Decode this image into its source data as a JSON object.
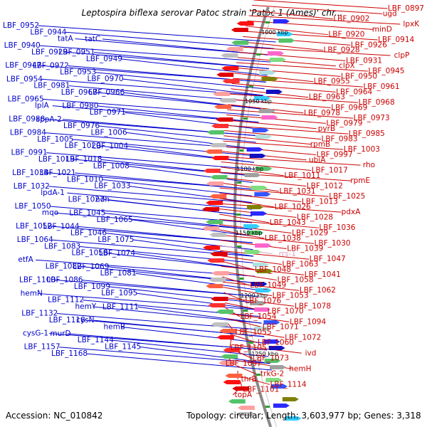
{
  "title": "Leptospira biflexa serovar Patoc strain 'Patoc 1 (Ames)' chr...",
  "footer": {
    "accession": "Accession: NC_010842",
    "topology": "Topology: circular; Length: 3,603,977 bp; Genes: 3,318"
  },
  "colors": {
    "plus_strand": "#0000cc",
    "minus_strand": "#cc0000",
    "backbone": "#888888",
    "rrna": "#d9a0c0"
  },
  "kbp_marks": [
    "1000 kbp",
    "1050 kbp",
    "1100 kbp",
    "1150 kbp",
    "1200 kbp",
    "1250 kbp"
  ],
  "left_labels": [
    "LBF_0952",
    "LBF_0944",
    "tatA",
    "tatC",
    "LBF_0940",
    "LBF_0929",
    "LBF_0951",
    "LBF_0949",
    "LBF_0947",
    "LBF_0972",
    "LBF_0953",
    "LBF_0970",
    "LBF_0954",
    "LBF_0981",
    "LBF_0967",
    "LBF_0966",
    "LBF_0965",
    "lplA",
    "LBF_0980",
    "LBF_0971",
    "LBF_0988",
    "sppA-2",
    "LBF_0976",
    "LBF_1006",
    "LBF_0984",
    "LBF_1005",
    "LBF_1020",
    "LBF_1004",
    "LBF_0991",
    "LBF_1019",
    "LBF_1018",
    "LBF_1008",
    "LBF_1034",
    "LBF_1021",
    "LBF_1010",
    "LBF_1033",
    "LBF_1032",
    "lpdA-1",
    "LBF_1027",
    "ndh",
    "LBF_1050",
    "mqo",
    "LBF_1045",
    "LBF_1065",
    "LBF_1052",
    "LBF_1044",
    "LBF_1046",
    "LBF_1075",
    "LBF_1064",
    "LBF_1083",
    "LBF_1056",
    "LBF_1074",
    "etfA",
    "LBF_1082",
    "LBF_1069",
    "LBF_1081",
    "LBF_1100",
    "LBF_1086",
    "LBF_1099",
    "LBF_1095",
    "hemN",
    "LBF_1112",
    "hemY",
    "LBF_1111",
    "LBF_1132",
    "LBF_1118",
    "cysN",
    "hemB",
    "cysG-1",
    "murD",
    "LBF_1144",
    "LBF_1145",
    "LBF_1157",
    "LBF_1168"
  ],
  "right_labels": [
    "LBF_0897",
    "ugd",
    "LBF_0902",
    "lpxK",
    "minD",
    "LBF_0920",
    "LBF_0914",
    "LBF_0926",
    "LBF_0928",
    "clpP",
    "LBF_0931",
    "clpX",
    "LBF_0945",
    "LBF_0950",
    "LBF_0955",
    "LBF_0961",
    "LBF_0964",
    "LBF_0963",
    "LBF_0968",
    "LBF_0969",
    "LBF_0978",
    "LBF_0973",
    "LBF_0979",
    "pyrB",
    "LBF_0985",
    "LBF_0983",
    "rpmB",
    "LBF_1003",
    "LBF_0997",
    "ubiA",
    "rho",
    "LBF_1017",
    "LBF_1011",
    "rpmE",
    "LBF_1012",
    "LBF_1031",
    "LBF_1025",
    "LBF_1013",
    "LBF_1026",
    "pdxA",
    "LBF_1028",
    "LBF_1043",
    "LBF_1036",
    "LBF_1029",
    "LBF_1038",
    "LBF_1030",
    "LBF_1039",
    "rrs-1",
    "LBF_1047",
    "LBF_1063",
    "LBF_1048",
    "LBF_1041",
    "LBF_1058",
    "LBF_1049",
    "LBF_1062",
    "LBF_1053",
    "LBF_1076",
    "LBF_1078",
    "LBF_1070",
    "LBF_1054",
    "LBF_1094",
    "LBF_1071",
    "LBF_1055",
    "LBF_1072",
    "LBF_1060",
    "LBF_1105",
    "ivd",
    "LBF_1073",
    "LBF_1097",
    "hemH",
    "trkG-2",
    "thrB",
    "LBF_1114",
    "LBF_1101",
    "topA"
  ]
}
